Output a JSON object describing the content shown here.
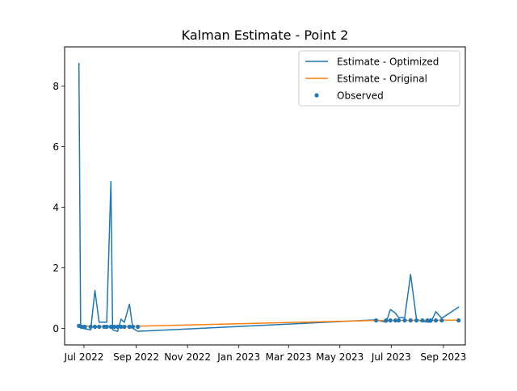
{
  "chart_data": {
    "type": "line",
    "title": "Kalman Estimate - Point 2",
    "xlabel": "",
    "ylabel": "",
    "x_axis": {
      "kind": "date",
      "range": [
        "2022-06-08",
        "2023-09-27"
      ],
      "ticks": [
        {
          "date": "2022-07-01",
          "label": "Jul 2022"
        },
        {
          "date": "2022-09-01",
          "label": "Sep 2022"
        },
        {
          "date": "2022-11-01",
          "label": "Nov 2022"
        },
        {
          "date": "2023-01-01",
          "label": "Jan 2023"
        },
        {
          "date": "2023-03-01",
          "label": "Mar 2023"
        },
        {
          "date": "2023-05-01",
          "label": "May 2023"
        },
        {
          "date": "2023-07-01",
          "label": "Jul 2023"
        },
        {
          "date": "2023-09-01",
          "label": "Sep 2023"
        }
      ]
    },
    "y_axis": {
      "range": [
        -0.55,
        9.3
      ],
      "ticks": [
        {
          "value": 0,
          "label": "0"
        },
        {
          "value": 2,
          "label": "2"
        },
        {
          "value": 4,
          "label": "4"
        },
        {
          "value": 6,
          "label": "6"
        },
        {
          "value": 8,
          "label": "8"
        }
      ]
    },
    "grid": false,
    "legend": {
      "position": "top-right",
      "entries": [
        "Estimate - Optimized",
        "Estimate - Original",
        "Observed"
      ]
    },
    "colors": {
      "optimized": "#1f77b4",
      "original": "#ff7f0e",
      "observed": "#1f77b4"
    },
    "series": [
      {
        "name": "Estimate - Optimized",
        "kind": "line",
        "points": [
          [
            "2022-06-25",
            8.75
          ],
          [
            "2022-06-27",
            0.1
          ],
          [
            "2022-06-29",
            0.0
          ],
          [
            "2022-07-09",
            -0.05
          ],
          [
            "2022-07-14",
            1.25
          ],
          [
            "2022-07-19",
            0.2
          ],
          [
            "2022-07-28",
            0.2
          ],
          [
            "2022-08-02",
            4.85
          ],
          [
            "2022-08-04",
            -0.05
          ],
          [
            "2022-08-10",
            -0.1
          ],
          [
            "2022-08-14",
            0.3
          ],
          [
            "2022-08-18",
            0.2
          ],
          [
            "2022-08-24",
            0.8
          ],
          [
            "2022-08-28",
            0.0
          ],
          [
            "2022-09-03",
            -0.1
          ],
          [
            "2023-06-13",
            0.28
          ],
          [
            "2023-06-25",
            0.2
          ],
          [
            "2023-06-30",
            0.62
          ],
          [
            "2023-07-06",
            0.5
          ],
          [
            "2023-07-10",
            0.35
          ],
          [
            "2023-07-17",
            0.35
          ],
          [
            "2023-07-24",
            1.78
          ],
          [
            "2023-07-31",
            0.3
          ],
          [
            "2023-08-07",
            0.22
          ],
          [
            "2023-08-17",
            0.2
          ],
          [
            "2023-08-23",
            0.55
          ],
          [
            "2023-08-30",
            0.33
          ],
          [
            "2023-09-19",
            0.7
          ]
        ]
      },
      {
        "name": "Estimate - Original",
        "kind": "line",
        "points": [
          [
            "2022-06-25",
            0.1
          ],
          [
            "2022-07-09",
            0.06
          ],
          [
            "2022-08-02",
            0.06
          ],
          [
            "2022-09-03",
            0.07
          ],
          [
            "2023-06-13",
            0.26
          ],
          [
            "2023-09-19",
            0.27
          ]
        ]
      },
      {
        "name": "Observed",
        "kind": "scatter",
        "points": [
          [
            "2022-06-25",
            0.08
          ],
          [
            "2022-06-28",
            0.05
          ],
          [
            "2022-07-02",
            0.05
          ],
          [
            "2022-07-09",
            0.05
          ],
          [
            "2022-07-14",
            0.05
          ],
          [
            "2022-07-19",
            0.05
          ],
          [
            "2022-07-25",
            0.05
          ],
          [
            "2022-07-28",
            0.05
          ],
          [
            "2022-08-02",
            0.05
          ],
          [
            "2022-08-06",
            0.05
          ],
          [
            "2022-08-10",
            0.05
          ],
          [
            "2022-08-14",
            0.05
          ],
          [
            "2022-08-18",
            0.05
          ],
          [
            "2022-08-24",
            0.05
          ],
          [
            "2022-08-28",
            0.05
          ],
          [
            "2022-09-03",
            0.05
          ],
          [
            "2023-06-13",
            0.26
          ],
          [
            "2023-06-25",
            0.26
          ],
          [
            "2023-06-30",
            0.26
          ],
          [
            "2023-07-06",
            0.26
          ],
          [
            "2023-07-10",
            0.26
          ],
          [
            "2023-07-17",
            0.26
          ],
          [
            "2023-07-24",
            0.26
          ],
          [
            "2023-07-31",
            0.26
          ],
          [
            "2023-08-07",
            0.26
          ],
          [
            "2023-08-13",
            0.26
          ],
          [
            "2023-08-17",
            0.26
          ],
          [
            "2023-08-23",
            0.26
          ],
          [
            "2023-08-30",
            0.26
          ],
          [
            "2023-09-19",
            0.26
          ]
        ]
      }
    ]
  }
}
